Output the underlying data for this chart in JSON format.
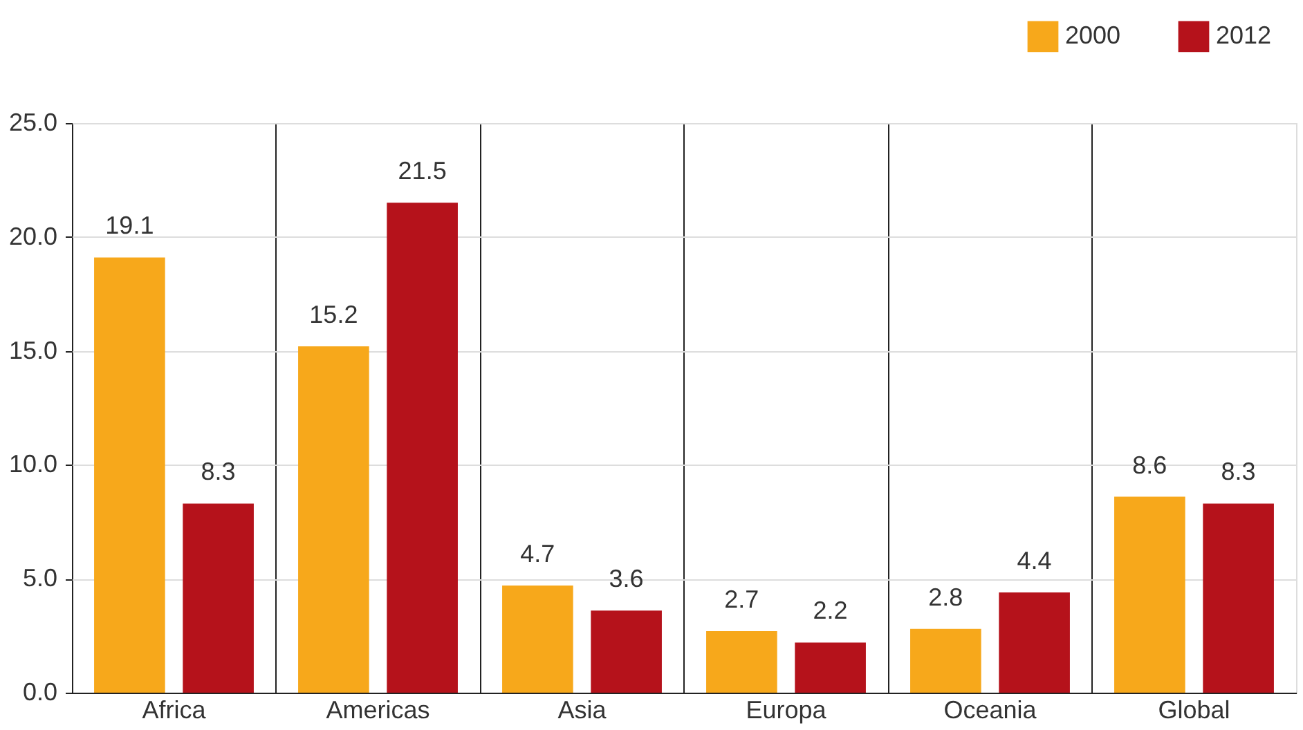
{
  "chart_data": {
    "type": "bar",
    "categories": [
      "Africa",
      "Americas",
      "Asia",
      "Europa",
      "Oceania",
      "Global"
    ],
    "series": [
      {
        "name": "2000",
        "color": "#f7a81b",
        "values": [
          19.1,
          15.2,
          4.7,
          2.7,
          2.8,
          8.6
        ]
      },
      {
        "name": "2012",
        "color": "#b5121b",
        "values": [
          8.3,
          21.5,
          3.6,
          2.2,
          4.4,
          8.3
        ]
      }
    ],
    "ylim": [
      0,
      25
    ],
    "yticks": [
      {
        "value": 0,
        "label": "0.0"
      },
      {
        "value": 5,
        "label": "5.0"
      },
      {
        "value": 10,
        "label": "10.0"
      },
      {
        "value": 15,
        "label": "15.0"
      },
      {
        "value": 20,
        "label": "20.0"
      },
      {
        "value": 25,
        "label": "25.0"
      }
    ],
    "grid": true,
    "legend": "top right",
    "data_labels": true
  }
}
